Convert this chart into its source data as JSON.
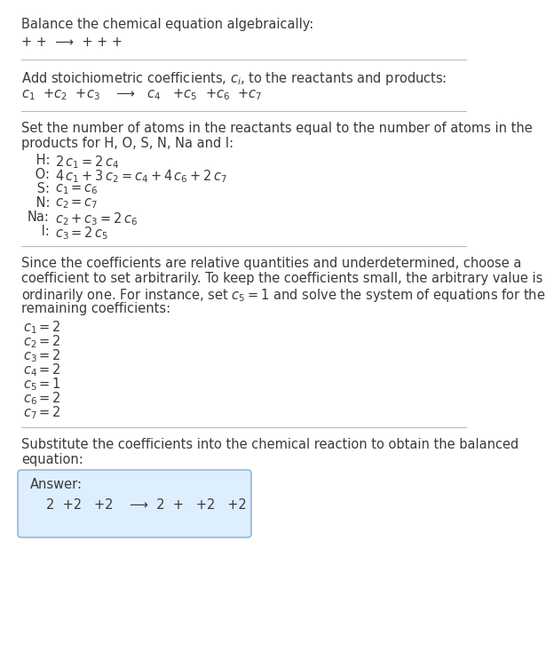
{
  "bg_color": "#ffffff",
  "text_color": "#3a3a3a",
  "title": "Balance the chemical equation algebraically:",
  "line1": "+ +  ⟶  + + +",
  "s1_label": "Add stoichiometric coefficients, $c_i$, to the reactants and products:",
  "s1_eq": "$c_1$  +$c_2$  +$c_3$    ⟶   $c_4$   +$c_5$  +$c_6$  +$c_7$",
  "s2_intro_l1": "Set the number of atoms in the reactants equal to the number of atoms in the",
  "s2_intro_l2": "products for H, O, S, N, Na and I:",
  "equations": [
    [
      " H:",
      "$2\\,c_1 = 2\\,c_4$"
    ],
    [
      " O:",
      "$4\\,c_1 + 3\\,c_2 = c_4 + 4\\,c_6 + 2\\,c_7$"
    ],
    [
      " S:",
      "$c_1 = c_6$"
    ],
    [
      " N:",
      "$c_2 = c_7$"
    ],
    [
      "Na:",
      "$c_2 + c_3 = 2\\,c_6$"
    ],
    [
      " I:",
      "$c_3 = 2\\,c_5$"
    ]
  ],
  "s3_para": [
    "Since the coefficients are relative quantities and underdetermined, choose a",
    "coefficient to set arbitrarily. To keep the coefficients small, the arbitrary value is",
    "ordinarily one. For instance, set $c_5 = 1$ and solve the system of equations for the",
    "remaining coefficients:"
  ],
  "coeff_list": [
    "$c_1 = 2$",
    "$c_2 = 2$",
    "$c_3 = 2$",
    "$c_4 = 2$",
    "$c_5 = 1$",
    "$c_6 = 2$",
    "$c_7 = 2$"
  ],
  "s4_l1": "Substitute the coefficients into the chemical reaction to obtain the balanced",
  "s4_l2": "equation:",
  "answer_label": "Answer:",
  "answer_eq": "2  +2   +2    ⟶  2  +   +2   +2 ",
  "box_fc": "#ddeeff",
  "box_ec": "#88aacc",
  "divider_color": "#bbbbbb",
  "fs": 10.5,
  "fs_title": 10.5
}
